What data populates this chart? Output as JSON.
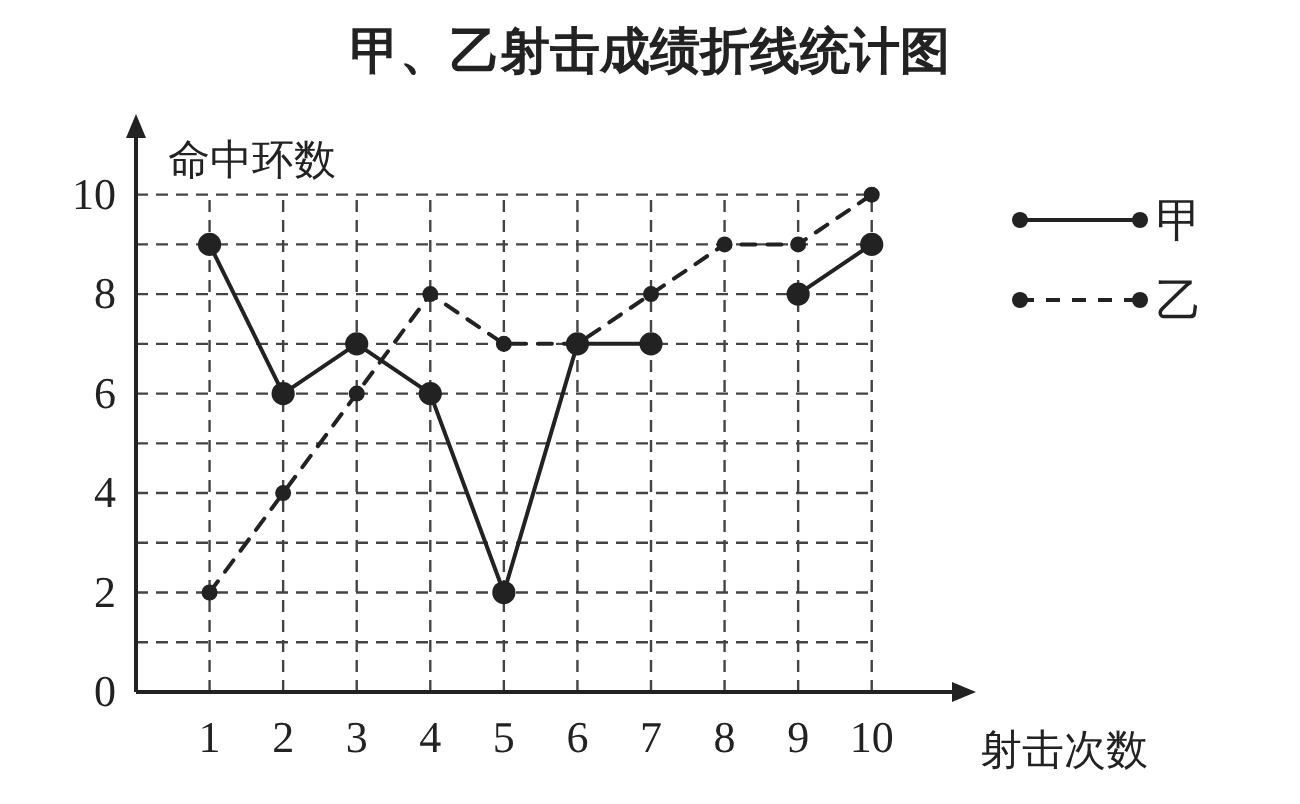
{
  "chart_data": {
    "type": "line",
    "title": "甲、乙射击成绩折线统计图",
    "xlabel": "射击次数",
    "ylabel": "命中环数",
    "x": [
      1,
      2,
      3,
      4,
      5,
      6,
      7,
      8,
      9,
      10
    ],
    "series": [
      {
        "name": "甲",
        "color": "#222222",
        "line_style": "solid",
        "values": [
          9,
          6,
          7,
          6,
          2,
          7,
          7,
          null,
          8,
          9
        ]
      },
      {
        "name": "乙",
        "color": "#222222",
        "line_style": "dashed",
        "values": [
          2,
          4,
          6,
          8,
          7,
          7,
          8,
          9,
          9,
          10
        ]
      }
    ],
    "xlim": [
      0,
      11.2
    ],
    "ylim": [
      0,
      11.3
    ],
    "xticks": [
      1,
      2,
      3,
      4,
      5,
      6,
      7,
      8,
      9,
      10
    ],
    "yticks": [
      0,
      {
        "value": 1,
        "label": null
      },
      2,
      {
        "value": 3,
        "label": null
      },
      4,
      {
        "value": 5,
        "label": null
      },
      6,
      {
        "value": 7,
        "label": null
      },
      8,
      {
        "value": 9,
        "label": null
      },
      10
    ],
    "grid": true,
    "legend": "right",
    "marker": "circle"
  }
}
